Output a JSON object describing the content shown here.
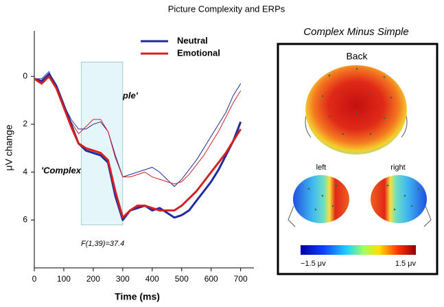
{
  "chart_data": {
    "type": "line",
    "title": "Picture Complexity and ERPs",
    "x_label": "Time (ms)",
    "y_label": "μV change",
    "x": [
      0,
      25,
      50,
      75,
      100,
      125,
      150,
      175,
      200,
      225,
      250,
      275,
      300,
      325,
      350,
      375,
      400,
      425,
      450,
      475,
      500,
      525,
      550,
      575,
      600,
      625,
      650,
      675,
      700
    ],
    "series": [
      {
        "name": "Neutral",
        "color": "#1f2a9c",
        "values": [
          0.1,
          0.2,
          -0.1,
          0.4,
          1.2,
          2.0,
          2.8,
          3.1,
          3.2,
          3.3,
          3.6,
          5.0,
          6.0,
          5.6,
          5.5,
          5.4,
          5.6,
          5.5,
          5.7,
          5.9,
          5.8,
          5.6,
          5.2,
          4.8,
          4.4,
          3.9,
          3.3,
          2.7,
          1.9
        ],
        "simple_values": [
          0.1,
          0.1,
          -0.2,
          0.5,
          1.2,
          1.8,
          2.2,
          2.2,
          2.0,
          1.9,
          2.3,
          3.3,
          4.2,
          4.1,
          4.0,
          3.9,
          3.8,
          4.0,
          4.3,
          4.6,
          4.3,
          3.9,
          3.5,
          3.0,
          2.5,
          2.0,
          1.5,
          0.8,
          0.3
        ]
      },
      {
        "name": "Emotional",
        "color": "#d42020",
        "values": [
          0.1,
          0.3,
          0.0,
          0.5,
          1.3,
          2.1,
          2.8,
          3.0,
          3.1,
          3.2,
          3.5,
          4.8,
          5.9,
          5.6,
          5.4,
          5.4,
          5.5,
          5.6,
          5.6,
          5.6,
          5.4,
          5.1,
          4.8,
          4.4,
          4.0,
          3.6,
          3.2,
          2.7,
          2.2
        ],
        "simple_values": [
          0.1,
          0.3,
          0.0,
          0.5,
          1.3,
          1.9,
          2.4,
          2.1,
          1.8,
          1.8,
          2.3,
          3.4,
          4.2,
          4.2,
          4.1,
          4.0,
          4.2,
          4.3,
          4.4,
          4.5,
          4.4,
          4.1,
          3.7,
          3.3,
          2.8,
          2.3,
          1.7,
          1.1,
          0.6
        ]
      }
    ],
    "xlim": [
      0,
      745
    ],
    "xticks": [
      0,
      100,
      200,
      300,
      400,
      500,
      600,
      700
    ],
    "ylim": [
      -1.9,
      8
    ],
    "yticks": [
      0,
      2,
      4,
      6
    ],
    "y_inverted": true,
    "legend": "top-center",
    "window_x": [
      160,
      300
    ],
    "window_y": [
      -0.6,
      6.2
    ],
    "window_color": "#e4f6fa",
    "annotations": [
      "'Simple'",
      "'Complex'",
      "F(1,39)=37.4"
    ],
    "panel": {
      "title": "Complex Minus Simple",
      "back": "Back",
      "left": "left",
      "right": "right",
      "colorbar": {
        "ticks": [
          {
            "value": -1.5,
            "label": "−1.5 μv"
          },
          {
            "value": 1.5,
            "label": "1.5 μv"
          }
        ]
      }
    }
  }
}
